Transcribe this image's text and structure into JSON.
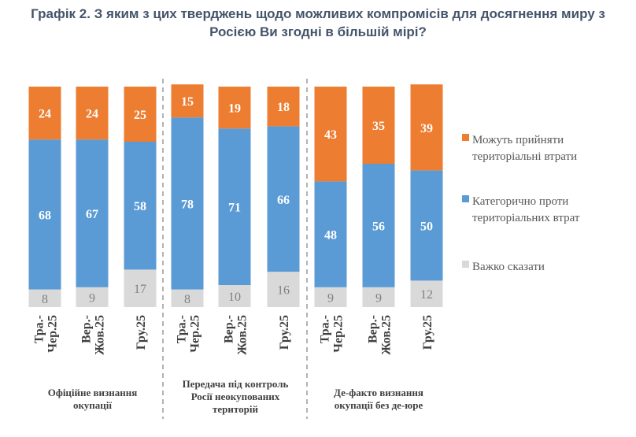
{
  "chart_data": {
    "type": "bar",
    "stacked": true,
    "title_line1": "Графік 2. З яким з цих тверджень щодо можливих компромісів для досягнення миру з",
    "title_line2": "Росією Ви згодні в більшій мірі?",
    "groups": [
      {
        "label": [
          "Офіційне визнання",
          "окупації"
        ],
        "categories": [
          [
            "Тра.-",
            "Чер.25"
          ],
          [
            "Вер.-",
            "Жов.25"
          ],
          [
            "Гру.25"
          ]
        ]
      },
      {
        "label": [
          "Передача під контроль",
          "Росії неокупованих",
          "територій"
        ],
        "categories": [
          [
            "Тра.-",
            "Чер.25"
          ],
          [
            "Вер.-",
            "Жов.25"
          ],
          [
            "Гру.25"
          ]
        ]
      },
      {
        "label": [
          "Де-факто визнання",
          "окупації без де-юре"
        ],
        "categories": [
          [
            "Тра.-",
            "Чер.25"
          ],
          [
            "Вер.-",
            "Жов.25"
          ],
          [
            "Гру.25"
          ]
        ]
      }
    ],
    "series": [
      {
        "name": "Важко сказати",
        "color": "#d9d9d9",
        "label_color": "#808080",
        "values": [
          8,
          9,
          17,
          8,
          10,
          16,
          9,
          9,
          12
        ]
      },
      {
        "name": "Категорично проти територіальних втрат",
        "legend_lines": [
          "Категорично проти",
          "територіальних втрат"
        ],
        "color": "#5b9bd5",
        "label_color": "#ffffff",
        "values": [
          68,
          67,
          58,
          78,
          71,
          66,
          48,
          56,
          50
        ]
      },
      {
        "name": "Можуть прийняти територіальні втрати",
        "legend_lines": [
          "Можуть прийняти",
          "територіальні втрати"
        ],
        "color": "#ed7d31",
        "label_color": "#ffffff",
        "values": [
          24,
          24,
          25,
          15,
          19,
          18,
          43,
          35,
          39
        ]
      }
    ],
    "legend_placement": "right",
    "ylim": [
      0,
      100
    ],
    "units": "%",
    "grid": false
  }
}
